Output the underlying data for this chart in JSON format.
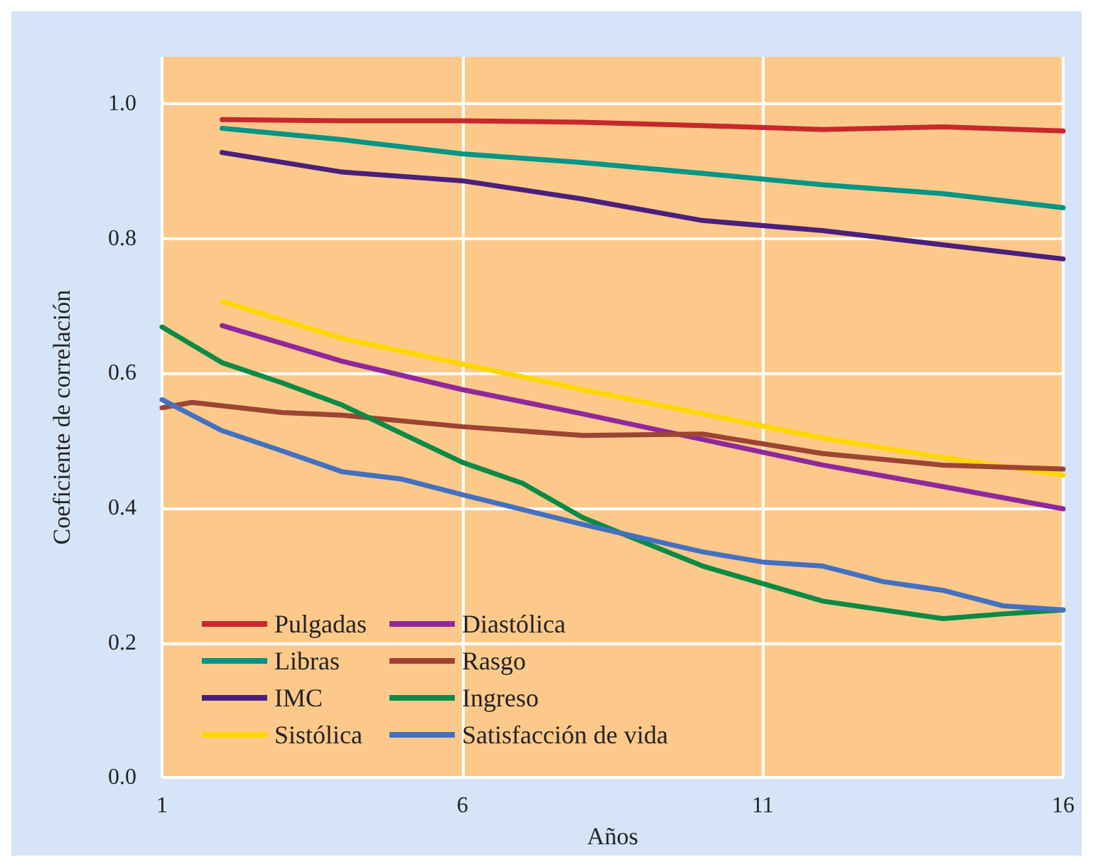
{
  "chart_data": {
    "type": "line",
    "xlabel": "Años",
    "ylabel": "Coeficiente de correlación",
    "xlim": [
      1,
      16
    ],
    "xticks": [
      1,
      6,
      11,
      16
    ],
    "ylim": [
      0,
      1.07
    ],
    "yticks": [
      {
        "value": 0,
        "label": "0.0"
      },
      0.2,
      0.4,
      0.6,
      0.8,
      {
        "value": 1,
        "label": "1.0"
      }
    ],
    "grid": true,
    "legend": "bottom left",
    "marker": "none",
    "line_style": "solid",
    "series": [
      {
        "name": "Pulgadas",
        "color": "#c8282d",
        "x": [
          2,
          4,
          6,
          8,
          10,
          12,
          14,
          16
        ],
        "values": [
          0.977,
          0.975,
          0.975,
          0.973,
          0.968,
          0.962,
          0.966,
          0.96
        ]
      },
      {
        "name": "Libras",
        "color": "#009585",
        "x": [
          2,
          4,
          6,
          8,
          10,
          12,
          14,
          16
        ],
        "values": [
          0.964,
          0.947,
          0.926,
          0.913,
          0.897,
          0.88,
          0.867,
          0.846
        ]
      },
      {
        "name": "IMC",
        "color": "#4b1f7c",
        "x": [
          2,
          4,
          6,
          8,
          10,
          12,
          14,
          16
        ],
        "values": [
          0.928,
          0.899,
          0.886,
          0.859,
          0.827,
          0.812,
          0.791,
          0.77
        ]
      },
      {
        "name": "Sistólica",
        "color": "#ffd700",
        "x": [
          2,
          4,
          6,
          8,
          10,
          12,
          14,
          16
        ],
        "values": [
          0.707,
          0.652,
          0.614,
          0.576,
          0.54,
          0.504,
          0.475,
          0.449
        ]
      },
      {
        "name": "Diastólica",
        "color": "#90289b",
        "x": [
          2,
          4,
          6,
          8,
          10,
          12,
          14,
          16
        ],
        "values": [
          0.671,
          0.618,
          0.576,
          0.54,
          0.502,
          0.464,
          0.432,
          0.399
        ]
      },
      {
        "name": "Rasgo",
        "color": "#9e4433",
        "x": [
          1,
          1.5,
          3,
          4,
          6,
          8,
          10,
          12,
          14,
          16
        ],
        "values": [
          0.549,
          0.557,
          0.542,
          0.538,
          0.521,
          0.508,
          0.51,
          0.481,
          0.464,
          0.458
        ]
      },
      {
        "name": "Ingreso",
        "color": "#0b8a45",
        "x": [
          1,
          2,
          3,
          4,
          6,
          7,
          8,
          10,
          12,
          14,
          15,
          16
        ],
        "values": [
          0.669,
          0.616,
          0.586,
          0.553,
          0.468,
          0.437,
          0.386,
          0.314,
          0.262,
          0.236,
          0.243,
          0.249
        ]
      },
      {
        "name": "Satisfacción de vida",
        "color": "#4470c0",
        "x": [
          1,
          2,
          3,
          4,
          5,
          6,
          8,
          10,
          11,
          12,
          13,
          14,
          15,
          16
        ],
        "values": [
          0.561,
          0.515,
          0.485,
          0.454,
          0.443,
          0.42,
          0.376,
          0.335,
          0.32,
          0.314,
          0.291,
          0.278,
          0.255,
          0.249
        ]
      }
    ]
  }
}
